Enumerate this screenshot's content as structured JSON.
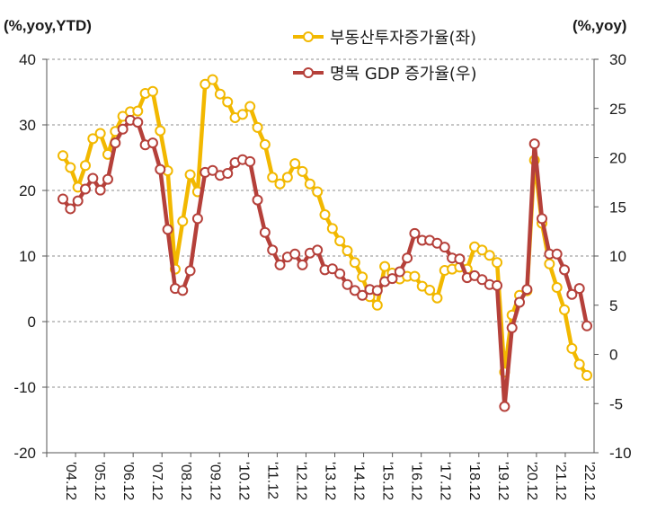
{
  "chart_data": {
    "type": "line",
    "left_axis_unit": "(%,yoy,YTD)",
    "right_axis_unit": "(%,yoy)",
    "left_ylim": [
      -20,
      40
    ],
    "right_ylim": [
      -10,
      30
    ],
    "left_ticks": [
      40,
      30,
      20,
      10,
      0,
      -10,
      -20
    ],
    "right_ticks": [
      30,
      25,
      20,
      15,
      10,
      5,
      0,
      -5,
      -10
    ],
    "x_tick_labels": [
      "'04.12",
      "'05.12",
      "'06.12",
      "'07.12",
      "'08.12",
      "'09.12",
      "'10.12",
      "'11.12",
      "'12.12",
      "'13.12",
      "'14.12",
      "'15.12",
      "'16.12",
      "'17.12",
      "'18.12",
      "'19.12",
      "'20.12",
      "'21.12",
      "'22.12"
    ],
    "grid": "horizontal dashed",
    "legend_position": "top-center",
    "series": [
      {
        "name": "부동산투자증가율(좌)",
        "axis": "left",
        "color": "#F2B800",
        "values": [
          25.3,
          23.5,
          20.5,
          23.8,
          27.9,
          28.7,
          25.5,
          29.0,
          31.3,
          32.0,
          32.1,
          34.8,
          35.1,
          29.1,
          23.0,
          8.0,
          15.3,
          22.4,
          19.8,
          36.2,
          36.9,
          34.7,
          33.5,
          31.1,
          31.6,
          32.8,
          29.6,
          27.0,
          22.0,
          21.0,
          22.0,
          24.1,
          22.9,
          21.0,
          19.8,
          16.3,
          14.2,
          12.3,
          10.8,
          9.0,
          6.8,
          3.8,
          2.5,
          8.4,
          7.4,
          6.5,
          6.9,
          6.9,
          5.4,
          4.8,
          3.6,
          7.8,
          8.0,
          8.3,
          8.0,
          11.4,
          10.9,
          10.1,
          9.0,
          -7.7,
          1.0,
          4.0,
          4.7,
          24.6,
          15.0,
          8.8,
          5.2,
          1.8,
          -4.1,
          -6.5,
          -8.2
        ]
      },
      {
        "name": "명목 GDP 증가율(우)",
        "axis": "right",
        "color": "#B5403A",
        "values": [
          15.8,
          14.8,
          15.6,
          16.8,
          17.9,
          16.7,
          17.8,
          21.5,
          22.9,
          23.8,
          23.6,
          21.3,
          21.5,
          18.8,
          12.7,
          6.7,
          6.5,
          8.5,
          13.8,
          18.5,
          18.7,
          18.2,
          18.4,
          19.5,
          19.8,
          19.6,
          15.7,
          12.4,
          10.6,
          9.1,
          9.9,
          10.2,
          9.1,
          10.3,
          10.6,
          8.6,
          8.7,
          8.2,
          7.1,
          6.5,
          6.0,
          6.6,
          6.5,
          7.4,
          7.7,
          8.4,
          9.8,
          12.3,
          11.6,
          11.6,
          11.3,
          10.9,
          9.8,
          9.7,
          7.8,
          8.0,
          7.6,
          7.1,
          7.0,
          -5.3,
          2.7,
          5.3,
          6.6,
          21.4,
          13.8,
          10.2,
          10.2,
          8.6,
          6.1,
          6.7,
          2.9
        ]
      }
    ]
  }
}
